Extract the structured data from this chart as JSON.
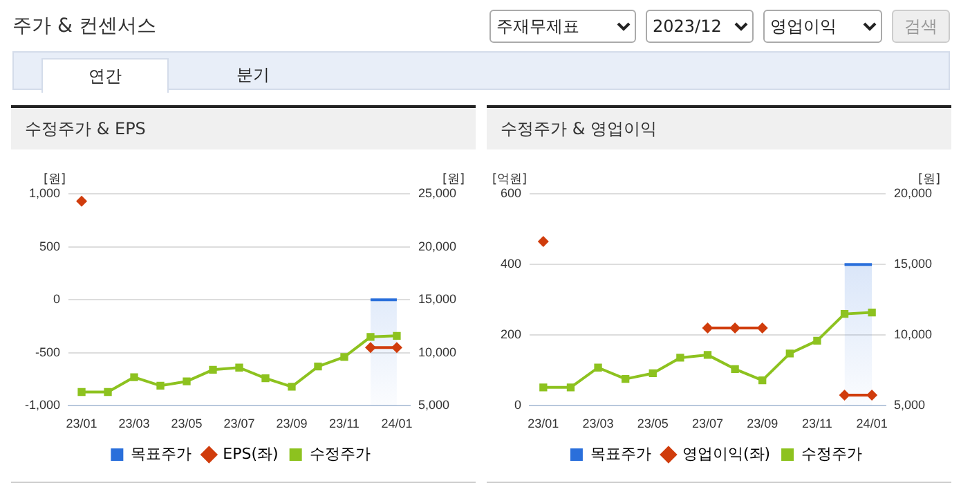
{
  "chart_data": [
    {
      "type": "line",
      "title": "수정주가 & EPS",
      "ylabel": "[원]",
      "y2label": "[원]",
      "annotations": [
        "주가 & 컨센서스",
        "주재무제표",
        "2023/12",
        "영업이익",
        "검색",
        "연간",
        "분기"
      ],
      "categories": [
        "23/01",
        null,
        "23/03",
        null,
        "23/05",
        null,
        "23/07",
        null,
        "23/09",
        null,
        "23/11",
        null,
        "24/01"
      ],
      "series": [
        {
          "name": "목표주가",
          "type": "area",
          "axis": "y2",
          "color": "#2a6fdb",
          "marker": "none",
          "values": [
            null,
            null,
            null,
            null,
            null,
            null,
            null,
            null,
            null,
            null,
            null,
            15000,
            15000
          ]
        },
        {
          "name": "EPS(좌)",
          "type": "line",
          "color": "#d03c0c",
          "marker": "diamond",
          "values": [
            930,
            null,
            null,
            null,
            null,
            null,
            null,
            null,
            null,
            null,
            null,
            -450,
            -450
          ]
        },
        {
          "name": "수정주가",
          "type": "line",
          "axis": "y2",
          "color": "#8dc21f",
          "marker": "square",
          "values": [
            6300,
            6300,
            7700,
            6900,
            7300,
            8400,
            8600,
            7600,
            6800,
            8700,
            9600,
            11500,
            11600
          ]
        }
      ],
      "ylim": [
        -1000,
        1000
      ],
      "yticks": [
        {
          "value": -1000,
          "label": "-1,000"
        },
        -500,
        0,
        500,
        {
          "value": 1000,
          "label": "1,000"
        }
      ],
      "y2lim": [
        5000,
        25000
      ],
      "y2ticks": [
        {
          "value": 5000,
          "label": "5,000"
        },
        {
          "value": 10000,
          "label": "10,000"
        },
        {
          "value": 15000,
          "label": "15,000"
        },
        {
          "value": 20000,
          "label": "20,000"
        },
        {
          "value": 25000,
          "label": "25,000"
        }
      ],
      "grid": "y",
      "legend": "bottom"
    },
    {
      "type": "line",
      "title": "수정주가 & 영업이익",
      "ylabel": "[억원]",
      "y2label": "[원]",
      "categories": [
        "23/01",
        null,
        "23/03",
        null,
        "23/05",
        null,
        "23/07",
        null,
        "23/09",
        null,
        "23/11",
        null,
        "24/01"
      ],
      "series": [
        {
          "name": "목표주가",
          "type": "area",
          "axis": "y2",
          "color": "#2a6fdb",
          "marker": "none",
          "values": [
            null,
            null,
            null,
            null,
            null,
            null,
            null,
            null,
            null,
            null,
            null,
            15000,
            15000
          ]
        },
        {
          "name": "영업이익(좌)",
          "type": "line",
          "color": "#d03c0c",
          "marker": "diamond",
          "values": [
            465,
            null,
            null,
            null,
            null,
            null,
            220,
            220,
            220,
            null,
            null,
            30,
            30
          ]
        },
        {
          "name": "수정주가",
          "type": "line",
          "axis": "y2",
          "color": "#8dc21f",
          "marker": "square",
          "values": [
            6300,
            6300,
            7700,
            6900,
            7300,
            8400,
            8600,
            7600,
            6800,
            8700,
            9600,
            11500,
            11600
          ]
        }
      ],
      "ylim": [
        0,
        600
      ],
      "yticks": [
        0,
        200,
        400,
        600
      ],
      "y2lim": [
        5000,
        20000
      ],
      "y2ticks": [
        {
          "value": 5000,
          "label": "5,000"
        },
        {
          "value": 10000,
          "label": "10,000"
        },
        {
          "value": 15000,
          "label": "15,000"
        },
        {
          "value": 20000,
          "label": "20,000"
        }
      ],
      "grid": "y",
      "legend": "bottom"
    }
  ]
}
